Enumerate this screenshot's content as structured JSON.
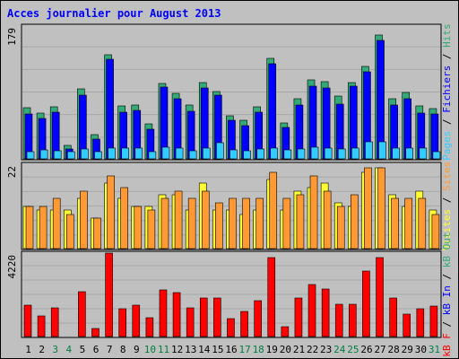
{
  "chart_data": {
    "type": "bar",
    "title": "Acces journalier pour August 2013",
    "categories": [
      "1",
      "2",
      "3",
      "4",
      "5",
      "6",
      "7",
      "8",
      "9",
      "10",
      "11",
      "12",
      "13",
      "14",
      "15",
      "16",
      "17",
      "18",
      "19",
      "20",
      "21",
      "22",
      "23",
      "24",
      "25",
      "26",
      "27",
      "28",
      "29",
      "30",
      "31"
    ],
    "weekend_days": [
      "3",
      "4",
      "10",
      "11",
      "17",
      "18",
      "24",
      "25",
      "31"
    ],
    "panels": [
      {
        "id": "hits",
        "max_label": "179",
        "ylim": [
          0,
          179
        ],
        "axis_label": [
          "Pages",
          " / ",
          "Fichiers",
          " / ",
          "Hits"
        ],
        "series": [
          {
            "name": "Hits",
            "color": "#33aa77",
            "values": [
              69,
              62,
              70,
              18,
              94,
              33,
              140,
              71,
              73,
              47,
              102,
              88,
              72,
              103,
              91,
              58,
              52,
              70,
              135,
              48,
              81,
              107,
              104,
              85,
              103,
              124,
              167,
              81,
              89,
              71,
              68
            ]
          },
          {
            "name": "Fichiers",
            "color": "#0000ff",
            "values": [
              61,
              55,
              63,
              13,
              86,
              27,
              134,
              63,
              65,
              40,
              97,
              81,
              64,
              96,
              86,
              52,
              45,
              63,
              128,
              42,
              73,
              98,
              96,
              74,
              98,
              117,
              160,
              72,
              81,
              62,
              61
            ]
          },
          {
            "name": "Pages",
            "color": "#33ccff",
            "values": [
              10,
              12,
              11,
              10,
              13,
              10,
              15,
              15,
              15,
              10,
              16,
              14,
              11,
              14,
              22,
              12,
              11,
              13,
              15,
              12,
              13,
              16,
              15,
              13,
              14,
              23,
              23,
              14,
              15,
              14,
              10
            ]
          }
        ]
      },
      {
        "id": "visits",
        "max_label": "22",
        "ylim": [
          0,
          22
        ],
        "axis_label": [
          "Visites",
          " / ",
          "Sites"
        ],
        "series": [
          {
            "name": "Visites",
            "color": "#ffff33",
            "values": [
              11,
              10,
              10,
              10,
              13,
              8,
              17,
              13,
              11,
              11,
              14,
              14,
              10,
              17,
              10,
              10,
              9,
              10,
              18,
              10,
              15,
              16,
              17,
              12,
              11,
              20,
              21,
              14,
              11,
              15,
              10
            ]
          },
          {
            "name": "Sites",
            "color": "#ff9933",
            "values": [
              11,
              11,
              13,
              9,
              15,
              8,
              19,
              16,
              11,
              10,
              13,
              15,
              13,
              15,
              12,
              13,
              13,
              13,
              20,
              13,
              14,
              19,
              15,
              11,
              14,
              21,
              21,
              13,
              13,
              13,
              9
            ]
          }
        ]
      },
      {
        "id": "traffic",
        "max_label": "4220",
        "ylim": [
          0,
          4220
        ],
        "axis_label": [
          "kB F",
          " / ",
          "kB In",
          " / ",
          "kB Out"
        ],
        "series": [
          {
            "name": "kB F",
            "color": "#ff0000",
            "values": [
              1600,
              1050,
              1450,
              0,
              2280,
              420,
              4220,
              1400,
              1600,
              950,
              2350,
              2230,
              1450,
              1950,
              1950,
              890,
              1250,
              1800,
              3980,
              520,
              1950,
              2650,
              2400,
              1650,
              1650,
              3330,
              3980,
              1950,
              1150,
              1400,
              1550
            ]
          }
        ]
      }
    ],
    "colors": {
      "weekday_label": "#000000",
      "weekend_label": "#008040",
      "panel_bg": "#c0c0c0"
    }
  }
}
